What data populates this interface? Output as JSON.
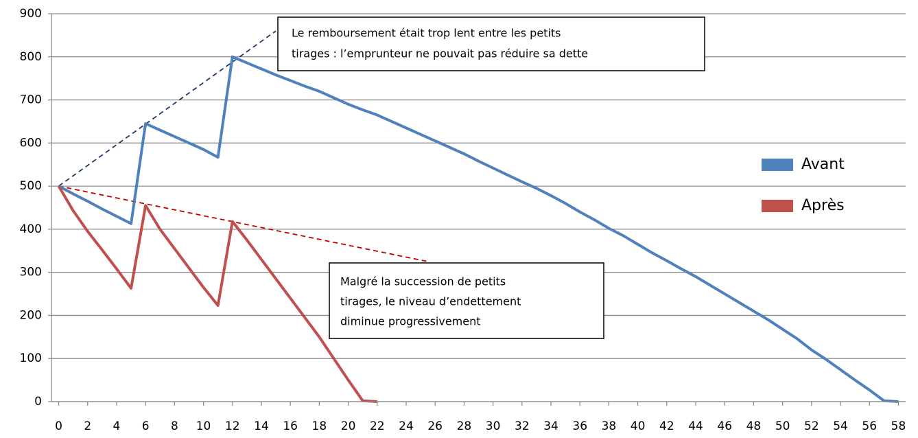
{
  "chart_data": {
    "type": "line",
    "x": [
      0,
      1,
      2,
      3,
      4,
      5,
      6,
      7,
      8,
      9,
      10,
      11,
      12,
      13,
      14,
      15,
      16,
      17,
      18,
      19,
      20,
      21,
      22,
      23,
      24,
      25,
      26,
      27,
      28,
      29,
      30,
      31,
      32,
      33,
      34,
      35,
      36,
      37,
      38,
      39,
      40,
      41,
      42,
      43,
      44,
      45,
      46,
      47,
      48,
      49,
      50,
      51,
      52,
      53,
      54,
      55,
      56,
      57,
      58
    ],
    "series": [
      {
        "name": "Avant",
        "color": "#4f81bd",
        "values": [
          500,
          482,
          465,
          447,
          430,
          413,
          645,
          630,
          615,
          600,
          585,
          567,
          800,
          786,
          772,
          758,
          745,
          732,
          720,
          705,
          690,
          677,
          665,
          650,
          635,
          620,
          605,
          590,
          575,
          558,
          542,
          526,
          510,
          495,
          478,
          460,
          440,
          422,
          402,
          385,
          365,
          345,
          327,
          308,
          290,
          270,
          250,
          230,
          210,
          190,
          168,
          146,
          120,
          98,
          74,
          50,
          27,
          2,
          0
        ]
      },
      {
        "name": "Après",
        "color": "#c0504d",
        "values": [
          500,
          443,
          395,
          352,
          308,
          263,
          455,
          400,
          355,
          310,
          265,
          223,
          418,
          375,
          330,
          285,
          240,
          195,
          150,
          100,
          50,
          2,
          0,
          null,
          null,
          null,
          null,
          null,
          null,
          null,
          null,
          null,
          null,
          null,
          null,
          null,
          null,
          null,
          null,
          null,
          null,
          null,
          null,
          null,
          null,
          null,
          null,
          null,
          null,
          null,
          null,
          null,
          null,
          null,
          null,
          null,
          null,
          null,
          null
        ]
      }
    ],
    "trend_lines": [
      {
        "color": "#1f3864",
        "x": [
          0,
          15
        ],
        "values": [
          500,
          860
        ]
      },
      {
        "color": "#c00000",
        "x": [
          0,
          25.5
        ],
        "values": [
          500,
          325
        ]
      }
    ],
    "annotations": [
      {
        "lines": [
          "Le remboursement était trop lent entre les petits",
          "tirages : l’emprunteur ne pouvait pas réduire sa dette"
        ]
      },
      {
        "lines": [
          "Malgré la succession de petits",
          "tirages, le niveau d’endettement",
          "diminue progressivement"
        ]
      }
    ],
    "xlim": [
      -0.5,
      58.5
    ],
    "xticks": [
      0,
      2,
      4,
      6,
      8,
      10,
      12,
      14,
      16,
      18,
      20,
      22,
      24,
      26,
      28,
      30,
      32,
      34,
      36,
      38,
      40,
      42,
      44,
      46,
      48,
      50,
      52,
      54,
      56,
      58
    ],
    "ylim": [
      0,
      900
    ],
    "yticks": [
      0,
      100,
      200,
      300,
      400,
      500,
      600,
      700,
      800,
      900
    ],
    "grid": true,
    "legend": "right"
  }
}
